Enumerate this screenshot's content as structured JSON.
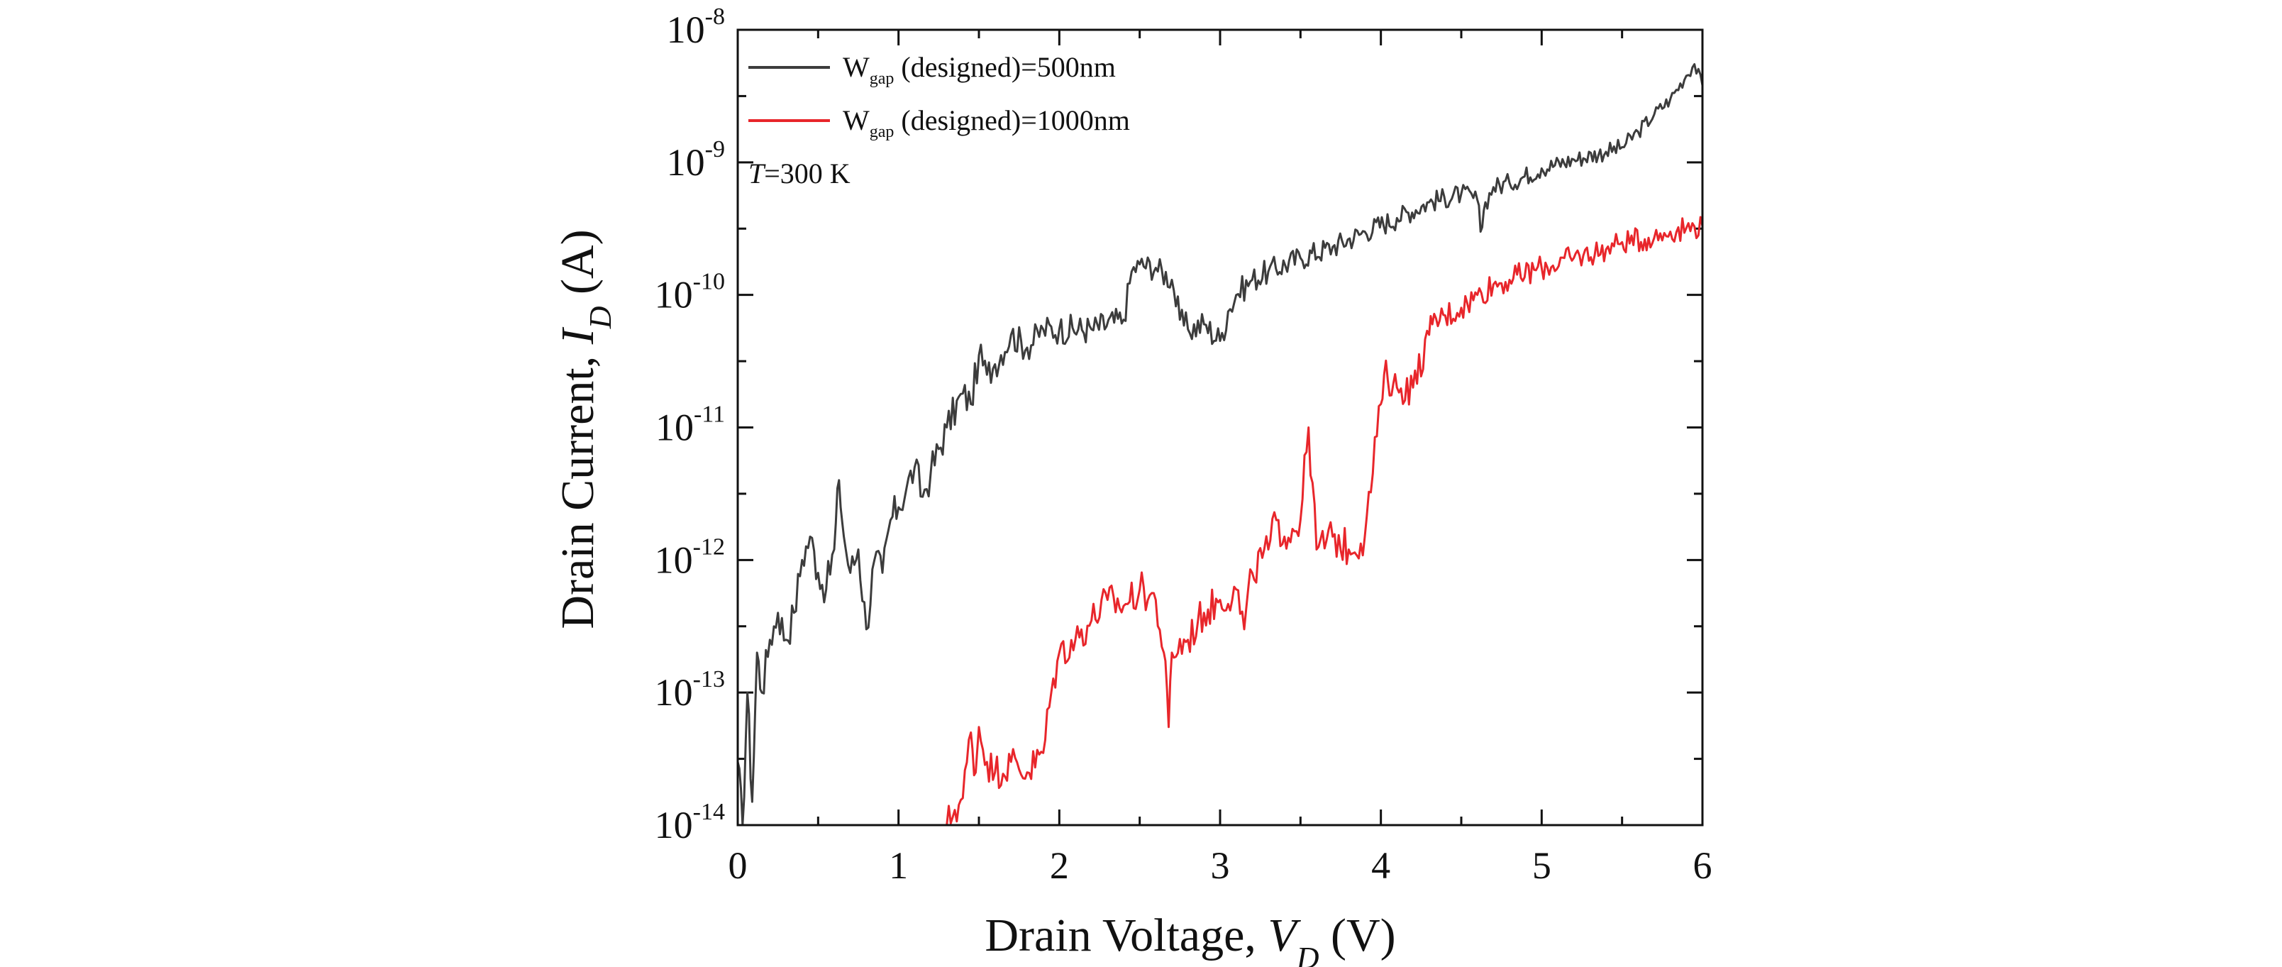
{
  "chart_data": {
    "type": "line",
    "xlabel": {
      "main": "Drain Voltage, ",
      "var": "V",
      "sub": "D",
      "unit": " (V)"
    },
    "ylabel": {
      "main": "Drain Current, ",
      "var": "I",
      "sub": "D",
      "unit": " (A)"
    },
    "xlim": [
      0,
      6
    ],
    "ylim_exponent": [
      -14,
      -8
    ],
    "y_scale": "log",
    "x_ticks": [
      "0",
      "1",
      "2",
      "3",
      "4",
      "5",
      "6"
    ],
    "y_ticks": [
      {
        "base": "10",
        "exp": "-14",
        "value": 1e-14
      },
      {
        "base": "10",
        "exp": "-13",
        "value": 1e-13
      },
      {
        "base": "10",
        "exp": "-12",
        "value": 1e-12
      },
      {
        "base": "10",
        "exp": "-11",
        "value": 1e-11
      },
      {
        "base": "10",
        "exp": "-10",
        "value": 1e-10
      },
      {
        "base": "10",
        "exp": "-9",
        "value": 1e-09
      },
      {
        "base": "10",
        "exp": "-8",
        "value": 1e-08
      }
    ],
    "annotation": {
      "var": "T",
      "text": "=300 K"
    },
    "legend_position": "top-left",
    "series": [
      {
        "name": "W gap (designed)=500nm",
        "label_main": "W",
        "label_sub": "gap",
        "label_rest": " (designed)=500nm",
        "color": "#3c3c3c",
        "x": [
          0.0,
          0.03,
          0.06,
          0.09,
          0.12,
          0.15,
          0.2,
          0.25,
          0.3,
          0.35,
          0.4,
          0.45,
          0.5,
          0.55,
          0.6,
          0.63,
          0.66,
          0.7,
          0.75,
          0.8,
          0.85,
          0.9,
          0.95,
          1.0,
          1.05,
          1.1,
          1.15,
          1.2,
          1.3,
          1.4,
          1.45,
          1.5,
          1.55,
          1.6,
          1.7,
          1.8,
          1.9,
          2.0,
          2.2,
          2.4,
          2.45,
          2.5,
          2.6,
          2.7,
          2.75,
          2.8,
          2.9,
          3.0,
          3.05,
          3.1,
          3.2,
          3.3,
          3.5,
          3.7,
          3.9,
          4.1,
          4.3,
          4.5,
          4.6,
          4.62,
          4.65,
          4.7,
          4.8,
          5.0,
          5.2,
          5.4,
          5.5,
          5.6,
          5.7,
          5.8,
          5.9,
          5.95,
          6.0
        ],
        "values": [
          3e-14,
          1e-14,
          1e-13,
          1.5e-14,
          2e-13,
          1e-13,
          2.5e-13,
          4e-13,
          2.5e-13,
          4e-13,
          1e-12,
          1.5e-12,
          8e-13,
          6e-13,
          1.2e-12,
          4e-12,
          1.5e-12,
          8e-13,
          1.2e-12,
          3e-13,
          1e-12,
          8e-13,
          2e-12,
          2.5e-12,
          3.5e-12,
          5e-12,
          3e-12,
          4.5e-12,
          1e-11,
          1.8e-11,
          1.5e-11,
          3.5e-11,
          2.5e-11,
          3e-11,
          5e-11,
          4e-11,
          5.5e-11,
          5.5e-11,
          5.5e-11,
          6.5e-11,
          1.5e-10,
          1.7e-10,
          1.6e-10,
          1.3e-10,
          6.5e-11,
          5.5e-11,
          6e-11,
          4.5e-11,
          7.5e-11,
          1e-10,
          1.3e-10,
          1.5e-10,
          1.9e-10,
          2.3e-10,
          3e-10,
          3.8e-10,
          5e-10,
          5.8e-10,
          5.2e-10,
          3e-10,
          5e-10,
          6.5e-10,
          7e-10,
          9e-10,
          1.05e-09,
          1.2e-09,
          1.3e-09,
          1.7e-09,
          2.3e-09,
          3e-09,
          4.5e-09,
          5.5e-09,
          3.8e-09
        ]
      },
      {
        "name": "W gap (designed)=1000nm",
        "label_main": "W",
        "label_sub": "gap",
        "label_rest": " (designed)=1000nm",
        "color": "#e8262b",
        "x": [
          1.3,
          1.35,
          1.4,
          1.45,
          1.48,
          1.5,
          1.55,
          1.6,
          1.7,
          1.8,
          1.9,
          1.95,
          2.0,
          2.1,
          2.2,
          2.3,
          2.4,
          2.5,
          2.6,
          2.65,
          2.68,
          2.7,
          2.8,
          2.9,
          3.0,
          3.1,
          3.15,
          3.2,
          3.3,
          3.35,
          3.4,
          3.5,
          3.55,
          3.6,
          3.7,
          3.8,
          3.9,
          4.0,
          4.02,
          4.1,
          4.2,
          4.3,
          4.32,
          4.4,
          4.5,
          4.6,
          4.7,
          4.8,
          5.0,
          5.2,
          5.4,
          5.5,
          5.7,
          5.8,
          5.9,
          6.0
        ],
        "values": [
          1e-14,
          1.3e-14,
          1.6e-14,
          5e-14,
          2.5e-14,
          5.5e-14,
          3e-14,
          2.5e-14,
          3e-14,
          2.5e-14,
          3.5e-14,
          1e-13,
          2e-13,
          2.5e-13,
          3.5e-13,
          5e-13,
          4.5e-13,
          6e-13,
          5e-13,
          2e-13,
          5.5e-14,
          2e-13,
          2.5e-13,
          4e-13,
          5e-13,
          6e-13,
          3e-13,
          8e-13,
          1.2e-12,
          2e-12,
          1.5e-12,
          2e-12,
          1e-11,
          1.2e-12,
          1.5e-12,
          1.2e-12,
          1.5e-12,
          1.5e-11,
          2.5e-11,
          2e-11,
          2e-11,
          5e-11,
          6e-11,
          7e-11,
          8e-11,
          1e-10,
          1.2e-10,
          1.3e-10,
          1.6e-10,
          1.9e-10,
          2.2e-10,
          2.5e-10,
          2.7e-10,
          3e-10,
          3.2e-10,
          3.3e-10
        ]
      }
    ]
  }
}
